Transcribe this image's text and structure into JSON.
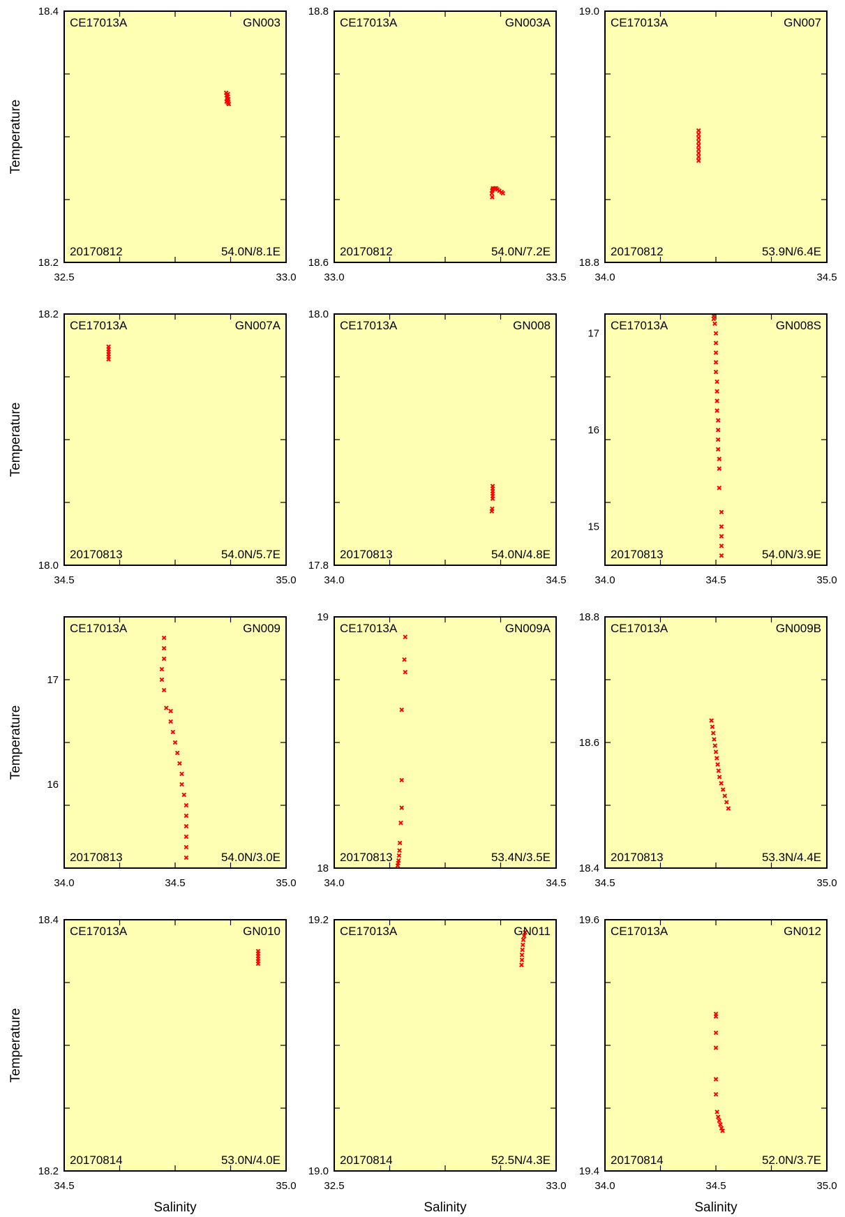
{
  "figure": {
    "xlabel": "Salinity",
    "ylabel": "Temperature",
    "panel_background": "#ffffb4",
    "marker_color": "#ff0000",
    "marker_shape": "x"
  },
  "chart_data": [
    {
      "type": "scatter",
      "cruise": "CE17013A",
      "station": "GN003",
      "date": "20170812",
      "position": "54.0N/8.1E",
      "xlim": [
        32.5,
        33.0
      ],
      "ylim": [
        18.2,
        18.4
      ],
      "xticks": [
        "32.5",
        "33.0"
      ],
      "yticks": [
        "18.2",
        "18.4"
      ],
      "points": [
        [
          32.865,
          18.335
        ],
        [
          32.866,
          18.333
        ],
        [
          32.867,
          18.331
        ],
        [
          32.868,
          18.329
        ],
        [
          32.869,
          18.327
        ],
        [
          32.868,
          18.332
        ],
        [
          32.87,
          18.33
        ],
        [
          32.866,
          18.328
        ],
        [
          32.871,
          18.326
        ],
        [
          32.869,
          18.334
        ]
      ]
    },
    {
      "type": "scatter",
      "cruise": "CE17013A",
      "station": "GN003A",
      "date": "20170812",
      "position": "54.0N/7.2E",
      "xlim": [
        33.0,
        33.5
      ],
      "ylim": [
        18.6,
        18.8
      ],
      "xticks": [
        "33.0",
        "33.5"
      ],
      "yticks": [
        "18.6",
        "18.8"
      ],
      "points": [
        [
          33.355,
          18.655
        ],
        [
          33.356,
          18.657
        ],
        [
          33.357,
          18.658
        ],
        [
          33.358,
          18.659
        ],
        [
          33.362,
          18.659
        ],
        [
          33.365,
          18.659
        ],
        [
          33.368,
          18.658
        ],
        [
          33.372,
          18.657
        ],
        [
          33.377,
          18.656
        ],
        [
          33.38,
          18.655
        ],
        [
          33.356,
          18.652
        ]
      ]
    },
    {
      "type": "scatter",
      "cruise": "CE17013A",
      "station": "GN007",
      "date": "20170812",
      "position": "53.9N/6.4E",
      "xlim": [
        34.0,
        34.5
      ],
      "ylim": [
        18.8,
        19.0
      ],
      "xticks": [
        "34.0",
        "34.5"
      ],
      "yticks": [
        "18.8",
        "19.0"
      ],
      "points": [
        [
          34.211,
          18.905
        ],
        [
          34.211,
          18.902
        ],
        [
          34.211,
          18.899
        ],
        [
          34.211,
          18.896
        ],
        [
          34.211,
          18.893
        ],
        [
          34.211,
          18.89
        ],
        [
          34.211,
          18.887
        ],
        [
          34.211,
          18.884
        ],
        [
          34.211,
          18.881
        ]
      ]
    },
    {
      "type": "scatter",
      "cruise": "CE17013A",
      "station": "GN007A",
      "date": "20170813",
      "position": "54.0N/5.7E",
      "xlim": [
        34.5,
        35.0
      ],
      "ylim": [
        18.0,
        18.2
      ],
      "xticks": [
        "34.5",
        "35.0"
      ],
      "yticks": [
        "18.0",
        "18.2"
      ],
      "points": [
        [
          34.6,
          18.174
        ],
        [
          34.6,
          18.172
        ],
        [
          34.6,
          18.17
        ],
        [
          34.6,
          18.168
        ],
        [
          34.6,
          18.166
        ],
        [
          34.6,
          18.164
        ]
      ]
    },
    {
      "type": "scatter",
      "cruise": "CE17013A",
      "station": "GN008",
      "date": "20170813",
      "position": "54.0N/4.8E",
      "xlim": [
        34.0,
        34.5
      ],
      "ylim": [
        17.8,
        18.0
      ],
      "xticks": [
        "34.0",
        "34.5"
      ],
      "yticks": [
        "17.8",
        "18.0"
      ],
      "points": [
        [
          34.357,
          17.863
        ],
        [
          34.357,
          17.861
        ],
        [
          34.357,
          17.859
        ],
        [
          34.357,
          17.857
        ],
        [
          34.357,
          17.855
        ],
        [
          34.357,
          17.853
        ],
        [
          34.356,
          17.845
        ],
        [
          34.355,
          17.843
        ]
      ]
    },
    {
      "type": "scatter",
      "cruise": "CE17013A",
      "station": "GN008S",
      "date": "20170813",
      "position": "54.0N/3.9E",
      "xlim": [
        34.0,
        35.0
      ],
      "ylim": [
        14.6,
        17.2
      ],
      "xticks": [
        "34.0",
        "34.5",
        "35.0"
      ],
      "yticks": [
        "15",
        "16",
        "17"
      ],
      "points": [
        [
          34.49,
          17.18
        ],
        [
          34.49,
          17.15
        ],
        [
          34.495,
          17.1
        ],
        [
          34.5,
          17.0
        ],
        [
          34.5,
          16.9
        ],
        [
          34.5,
          16.8
        ],
        [
          34.5,
          16.7
        ],
        [
          34.5,
          16.6
        ],
        [
          34.505,
          16.5
        ],
        [
          34.505,
          16.4
        ],
        [
          34.505,
          16.3
        ],
        [
          34.505,
          16.2
        ],
        [
          34.51,
          16.1
        ],
        [
          34.51,
          16.0
        ],
        [
          34.51,
          15.9
        ],
        [
          34.51,
          15.8
        ],
        [
          34.515,
          15.7
        ],
        [
          34.515,
          15.6
        ],
        [
          34.515,
          15.4
        ],
        [
          34.525,
          15.15
        ],
        [
          34.525,
          15.0
        ],
        [
          34.525,
          14.9
        ],
        [
          34.525,
          14.8
        ],
        [
          34.525,
          14.7
        ]
      ]
    },
    {
      "type": "scatter",
      "cruise": "CE17013A",
      "station": "GN009",
      "date": "20170813",
      "position": "54.0N/3.0E",
      "xlim": [
        34.0,
        35.0
      ],
      "ylim": [
        15.2,
        17.6
      ],
      "xticks": [
        "34.0",
        "34.5",
        "35.0"
      ],
      "yticks": [
        "16",
        "17"
      ],
      "points": [
        [
          34.45,
          17.4
        ],
        [
          34.45,
          17.3
        ],
        [
          34.45,
          17.2
        ],
        [
          34.44,
          17.1
        ],
        [
          34.44,
          17.0
        ],
        [
          34.45,
          16.9
        ],
        [
          34.46,
          16.73
        ],
        [
          34.48,
          16.7
        ],
        [
          34.48,
          16.6
        ],
        [
          34.49,
          16.5
        ],
        [
          34.5,
          16.4
        ],
        [
          34.51,
          16.3
        ],
        [
          34.52,
          16.2
        ],
        [
          34.53,
          16.1
        ],
        [
          34.53,
          16.0
        ],
        [
          34.54,
          15.9
        ],
        [
          34.55,
          15.8
        ],
        [
          34.55,
          15.7
        ],
        [
          34.55,
          15.6
        ],
        [
          34.55,
          15.5
        ],
        [
          34.55,
          15.4
        ],
        [
          34.55,
          15.3
        ]
      ]
    },
    {
      "type": "scatter",
      "cruise": "CE17013A",
      "station": "GN009A",
      "date": "20170813",
      "position": "53.4N/3.5E",
      "xlim": [
        34.0,
        34.5
      ],
      "ylim": [
        18.0,
        19.0
      ],
      "xticks": [
        "34.0",
        "34.5"
      ],
      "yticks": [
        "18",
        "19"
      ],
      "points": [
        [
          34.16,
          18.92
        ],
        [
          34.158,
          18.83
        ],
        [
          34.16,
          18.78
        ],
        [
          34.152,
          18.63
        ],
        [
          34.152,
          18.35
        ],
        [
          34.152,
          18.24
        ],
        [
          34.15,
          18.18
        ],
        [
          34.148,
          18.1
        ],
        [
          34.147,
          18.07
        ],
        [
          34.146,
          18.05
        ],
        [
          34.145,
          18.03
        ],
        [
          34.144,
          18.02
        ],
        [
          34.143,
          18.01
        ]
      ]
    },
    {
      "type": "scatter",
      "cruise": "CE17013A",
      "station": "GN009B",
      "date": "20170813",
      "position": "53.3N/4.4E",
      "xlim": [
        34.5,
        35.0
      ],
      "ylim": [
        18.4,
        18.8
      ],
      "xticks": [
        "34.5",
        "35.0"
      ],
      "yticks": [
        "18.4",
        "18.6",
        "18.8"
      ],
      "points": [
        [
          34.74,
          18.635
        ],
        [
          34.742,
          18.625
        ],
        [
          34.744,
          18.615
        ],
        [
          34.746,
          18.605
        ],
        [
          34.748,
          18.595
        ],
        [
          34.75,
          18.585
        ],
        [
          34.752,
          18.575
        ],
        [
          34.754,
          18.565
        ],
        [
          34.756,
          18.555
        ],
        [
          34.758,
          18.545
        ],
        [
          34.762,
          18.535
        ],
        [
          34.766,
          18.525
        ],
        [
          34.77,
          18.515
        ],
        [
          34.774,
          18.505
        ],
        [
          34.778,
          18.495
        ]
      ]
    },
    {
      "type": "scatter",
      "cruise": "CE17013A",
      "station": "GN010",
      "date": "20170814",
      "position": "53.0N/4.0E",
      "xlim": [
        34.5,
        35.0
      ],
      "ylim": [
        18.2,
        18.4
      ],
      "xticks": [
        "34.5",
        "35.0"
      ],
      "yticks": [
        "18.2",
        "18.4"
      ],
      "points": [
        [
          34.937,
          18.375
        ],
        [
          34.937,
          18.373
        ],
        [
          34.937,
          18.371
        ],
        [
          34.937,
          18.369
        ],
        [
          34.937,
          18.367
        ],
        [
          34.937,
          18.365
        ]
      ]
    },
    {
      "type": "scatter",
      "cruise": "CE17013A",
      "station": "GN011",
      "date": "20170814",
      "position": "52.5N/4.3E",
      "xlim": [
        32.5,
        33.0
      ],
      "ylim": [
        19.0,
        19.2
      ],
      "xticks": [
        "32.5",
        "33.0"
      ],
      "yticks": [
        "19.0",
        "19.2"
      ],
      "points": [
        [
          32.93,
          19.19
        ],
        [
          32.928,
          19.187
        ],
        [
          32.926,
          19.184
        ],
        [
          32.925,
          19.18
        ],
        [
          32.924,
          19.176
        ],
        [
          32.923,
          19.172
        ],
        [
          32.923,
          19.168
        ],
        [
          32.922,
          19.164
        ]
      ]
    },
    {
      "type": "scatter",
      "cruise": "CE17013A",
      "station": "GN012",
      "date": "20170814",
      "position": "52.0N/3.7E",
      "xlim": [
        34.0,
        35.0
      ],
      "ylim": [
        19.4,
        19.6
      ],
      "xticks": [
        "34.0",
        "34.5",
        "35.0"
      ],
      "yticks": [
        "19.4",
        "19.6"
      ],
      "points": [
        [
          34.5,
          19.525
        ],
        [
          34.5,
          19.523
        ],
        [
          34.5,
          19.51
        ],
        [
          34.5,
          19.498
        ],
        [
          34.5,
          19.473
        ],
        [
          34.5,
          19.461
        ],
        [
          34.505,
          19.447
        ],
        [
          34.51,
          19.443
        ],
        [
          34.515,
          19.44
        ],
        [
          34.52,
          19.437
        ],
        [
          34.525,
          19.434
        ],
        [
          34.53,
          19.432
        ]
      ]
    }
  ]
}
